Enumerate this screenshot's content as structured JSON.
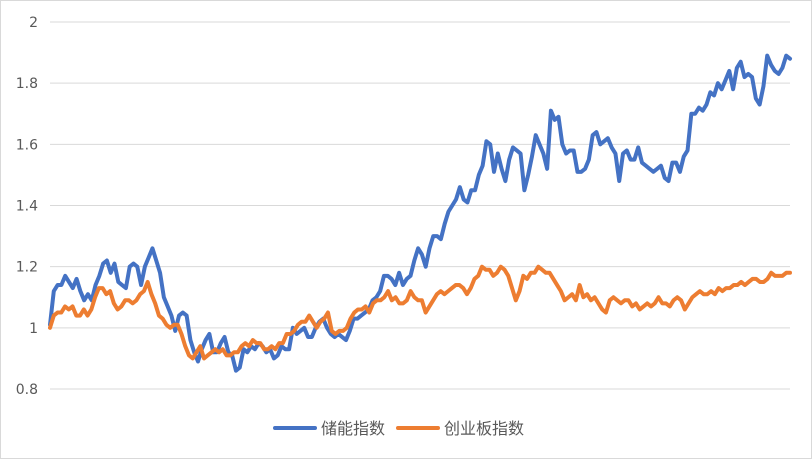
{
  "chart_data": {
    "type": "line",
    "title": "",
    "xlabel": "",
    "ylabel": "",
    "ylim": [
      0.8,
      2.0
    ],
    "y_ticks": [
      "0.8",
      "1",
      "1.2",
      "1.4",
      "1.6",
      "1.8",
      "2"
    ],
    "grid": true,
    "legend_position": "bottom",
    "series": [
      {
        "name": "储能指数",
        "color": "#4472c4",
        "values": [
          1.01,
          1.12,
          1.14,
          1.14,
          1.17,
          1.15,
          1.13,
          1.16,
          1.12,
          1.09,
          1.11,
          1.09,
          1.14,
          1.17,
          1.21,
          1.22,
          1.18,
          1.21,
          1.15,
          1.14,
          1.13,
          1.2,
          1.21,
          1.2,
          1.14,
          1.2,
          1.23,
          1.26,
          1.22,
          1.18,
          1.1,
          1.07,
          1.04,
          0.99,
          1.04,
          1.05,
          1.04,
          0.96,
          0.92,
          0.89,
          0.93,
          0.96,
          0.98,
          0.92,
          0.92,
          0.95,
          0.97,
          0.92,
          0.91,
          0.86,
          0.87,
          0.93,
          0.92,
          0.94,
          0.93,
          0.95,
          0.94,
          0.92,
          0.93,
          0.9,
          0.91,
          0.94,
          0.93,
          0.93,
          1.0,
          0.98,
          0.99,
          1.0,
          0.97,
          0.97,
          1.0,
          1.02,
          1.03,
          1.0,
          0.98,
          0.97,
          0.98,
          0.97,
          0.96,
          0.99,
          1.03,
          1.03,
          1.04,
          1.05,
          1.06,
          1.09,
          1.1,
          1.12,
          1.17,
          1.17,
          1.16,
          1.14,
          1.18,
          1.14,
          1.16,
          1.17,
          1.22,
          1.26,
          1.24,
          1.2,
          1.26,
          1.3,
          1.3,
          1.29,
          1.34,
          1.38,
          1.4,
          1.42,
          1.46,
          1.42,
          1.41,
          1.45,
          1.45,
          1.5,
          1.53,
          1.61,
          1.6,
          1.51,
          1.57,
          1.52,
          1.48,
          1.55,
          1.59,
          1.58,
          1.57,
          1.45,
          1.5,
          1.56,
          1.63,
          1.6,
          1.57,
          1.52,
          1.71,
          1.68,
          1.69,
          1.6,
          1.57,
          1.58,
          1.58,
          1.51,
          1.51,
          1.52,
          1.55,
          1.63,
          1.64,
          1.6,
          1.61,
          1.62,
          1.59,
          1.57,
          1.48,
          1.57,
          1.58,
          1.55,
          1.55,
          1.59,
          1.54,
          1.53,
          1.52,
          1.51,
          1.52,
          1.53,
          1.49,
          1.48,
          1.54,
          1.54,
          1.51,
          1.56,
          1.58,
          1.7,
          1.7,
          1.72,
          1.71,
          1.73,
          1.77,
          1.76,
          1.8,
          1.78,
          1.81,
          1.84,
          1.78,
          1.85,
          1.87,
          1.82,
          1.83,
          1.82,
          1.75,
          1.73,
          1.79,
          1.89,
          1.86,
          1.84,
          1.83,
          1.85,
          1.89,
          1.88
        ]
      },
      {
        "name": "创业板指数",
        "color": "#ed7d31",
        "values": [
          1.0,
          1.04,
          1.05,
          1.05,
          1.07,
          1.06,
          1.07,
          1.04,
          1.04,
          1.06,
          1.04,
          1.06,
          1.1,
          1.13,
          1.13,
          1.11,
          1.12,
          1.08,
          1.06,
          1.07,
          1.09,
          1.09,
          1.08,
          1.09,
          1.11,
          1.12,
          1.15,
          1.11,
          1.08,
          1.04,
          1.03,
          1.01,
          1.0,
          1.01,
          1.01,
          0.98,
          0.94,
          0.91,
          0.9,
          0.92,
          0.94,
          0.9,
          0.91,
          0.92,
          0.93,
          0.92,
          0.93,
          0.91,
          0.91,
          0.92,
          0.92,
          0.94,
          0.95,
          0.94,
          0.96,
          0.95,
          0.95,
          0.93,
          0.93,
          0.94,
          0.93,
          0.95,
          0.95,
          0.98,
          0.98,
          0.99,
          1.01,
          1.02,
          1.02,
          1.04,
          1.02,
          1.0,
          1.02,
          1.03,
          1.05,
          0.99,
          0.98,
          0.99,
          0.99,
          1.0,
          1.03,
          1.05,
          1.06,
          1.06,
          1.07,
          1.05,
          1.08,
          1.09,
          1.09,
          1.1,
          1.12,
          1.09,
          1.1,
          1.08,
          1.08,
          1.09,
          1.12,
          1.1,
          1.09,
          1.09,
          1.05,
          1.07,
          1.09,
          1.11,
          1.12,
          1.11,
          1.12,
          1.13,
          1.14,
          1.14,
          1.13,
          1.11,
          1.13,
          1.16,
          1.17,
          1.2,
          1.19,
          1.19,
          1.17,
          1.18,
          1.2,
          1.19,
          1.17,
          1.13,
          1.09,
          1.12,
          1.17,
          1.16,
          1.18,
          1.18,
          1.2,
          1.19,
          1.18,
          1.18,
          1.16,
          1.14,
          1.12,
          1.09,
          1.1,
          1.11,
          1.09,
          1.14,
          1.1,
          1.11,
          1.09,
          1.1,
          1.08,
          1.06,
          1.05,
          1.09,
          1.1,
          1.09,
          1.08,
          1.09,
          1.09,
          1.07,
          1.08,
          1.06,
          1.07,
          1.08,
          1.07,
          1.08,
          1.1,
          1.08,
          1.08,
          1.07,
          1.09,
          1.1,
          1.09,
          1.06,
          1.08,
          1.1,
          1.11,
          1.12,
          1.11,
          1.11,
          1.12,
          1.11,
          1.13,
          1.12,
          1.13,
          1.13,
          1.14,
          1.14,
          1.15,
          1.14,
          1.15,
          1.16,
          1.16,
          1.15,
          1.15,
          1.16,
          1.18,
          1.17,
          1.17,
          1.17,
          1.18,
          1.18
        ]
      }
    ]
  }
}
